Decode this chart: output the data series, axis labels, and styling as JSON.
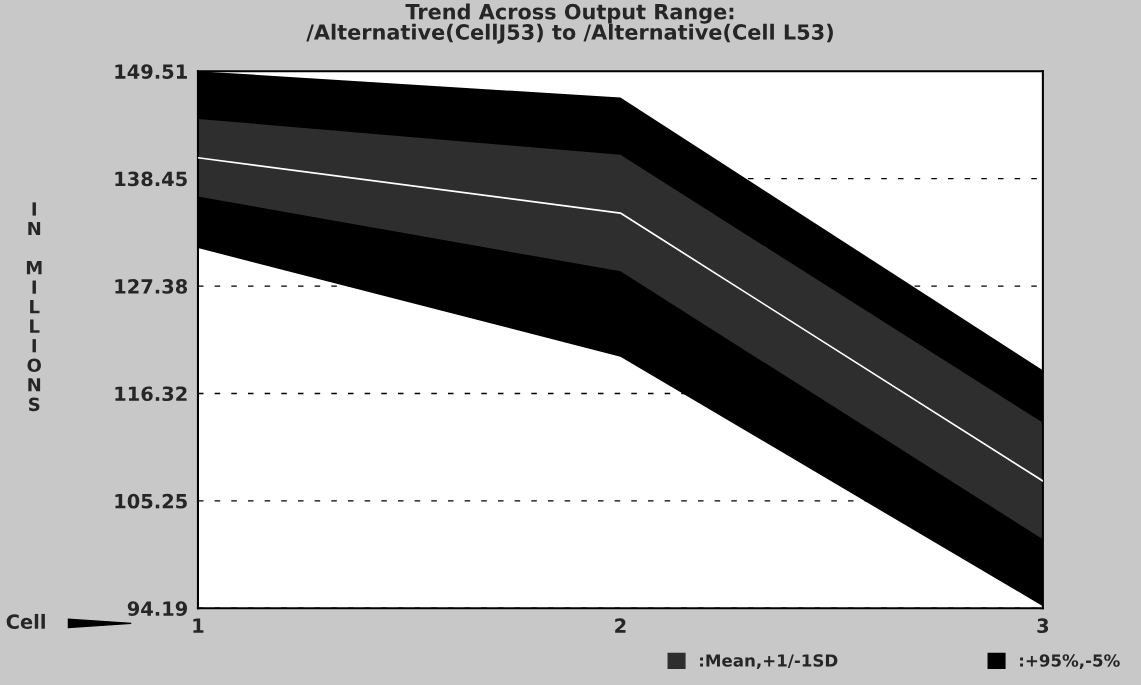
{
  "chart_data": {
    "type": "line",
    "title": "Trend Across Output Range:\n/Alternative(CellJ53) to /Alternative(Cell L53)",
    "xlabel": "Cell",
    "ylabel": "IN MILLIONS",
    "categories": [
      "1",
      "2",
      "3"
    ],
    "series": [
      {
        "name": ":+95%,-5%",
        "type": "area",
        "color": "#000000",
        "values": [
          null,
          null,
          null
        ],
        "lower": [
          131.3,
          120.1,
          94.4
        ],
        "upper": [
          149.51,
          146.8,
          118.7
        ]
      },
      {
        "name": ":Mean,+1/-1SD",
        "type": "area",
        "color": "#2e2e2e",
        "values": [
          null,
          null,
          null
        ],
        "lower": [
          136.6,
          128.9,
          101.3
        ],
        "upper": [
          144.6,
          140.9,
          113.3
        ]
      },
      {
        "color": "#ffffff",
        "values": [
          140.6,
          134.9,
          107.3
        ]
      }
    ],
    "ylim": [
      94.19,
      149.51
    ],
    "yticks": [
      94.19,
      105.25,
      116.32,
      127.38,
      138.45,
      149.51
    ],
    "grid": "y",
    "legend": "bottom"
  }
}
